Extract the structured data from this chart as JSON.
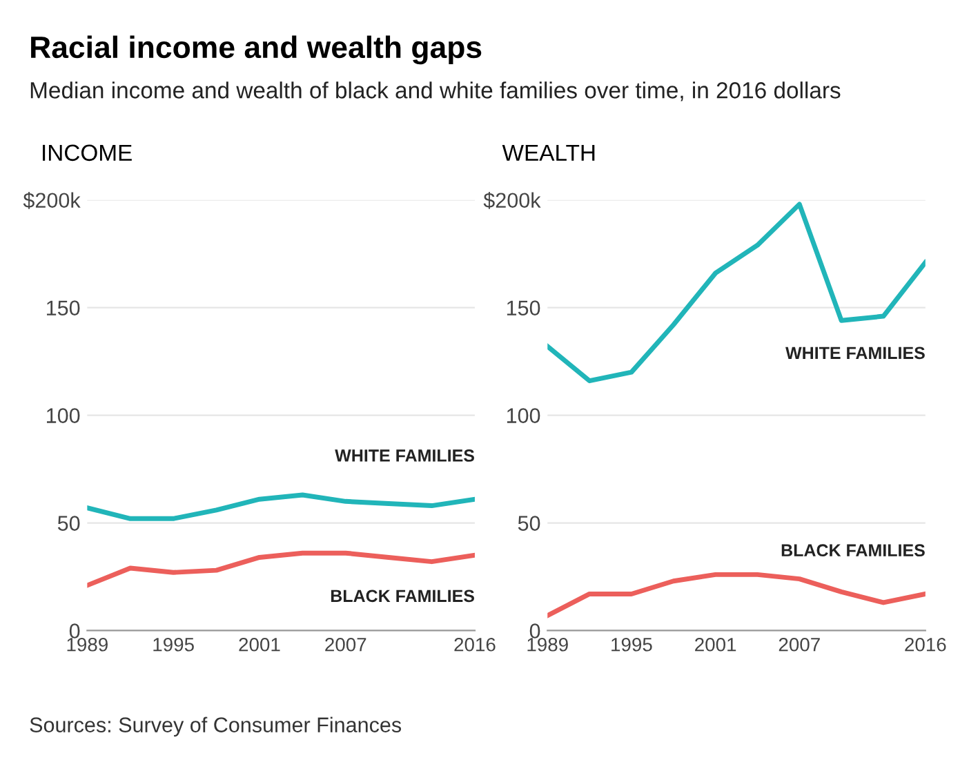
{
  "chart_data": [
    {
      "type": "line",
      "title": "Racial income and wealth gaps",
      "subtitle": "Median income and wealth of black and white families over time, in 2016 dollars",
      "ylabel": "INCOME",
      "x": [
        1989,
        1992,
        1995,
        1998,
        2001,
        2004,
        2007,
        2010,
        2013,
        2016
      ],
      "series": [
        {
          "name": "WHITE FAMILIES",
          "color": "#21b5b9",
          "values": [
            57,
            52,
            52,
            56,
            61,
            63,
            60,
            59,
            58,
            61
          ]
        },
        {
          "name": "BLACK FAMILIES",
          "color": "#ec5f5b",
          "values": [
            21,
            29,
            27,
            28,
            34,
            36,
            36,
            34,
            32,
            35
          ]
        }
      ],
      "xlim": [
        1989,
        2016
      ],
      "xticks": [
        1989,
        1995,
        2001,
        2007,
        2016
      ],
      "ylim": [
        0,
        200
      ],
      "yticks": [
        0,
        50,
        100,
        150,
        {
          "value": 200,
          "label": "$200k"
        }
      ],
      "grid": "y",
      "legend": false,
      "annotations": [
        "Sources: Survey of Consumer Finances"
      ]
    },
    {
      "type": "line",
      "ylabel": "WEALTH",
      "x": [
        1989,
        1992,
        1995,
        1998,
        2001,
        2004,
        2007,
        2010,
        2013,
        2016
      ],
      "series": [
        {
          "name": "WHITE FAMILIES",
          "color": "#21b5b9",
          "values": [
            132,
            116,
            120,
            142,
            166,
            179,
            198,
            144,
            146,
            171
          ]
        },
        {
          "name": "BLACK FAMILIES",
          "color": "#ec5f5b",
          "values": [
            7,
            17,
            17,
            23,
            26,
            26,
            24,
            18,
            13,
            17
          ]
        }
      ],
      "xlim": [
        1989,
        2016
      ],
      "xticks": [
        1989,
        1995,
        2001,
        2007,
        2016
      ],
      "ylim": [
        0,
        200
      ],
      "yticks": [
        0,
        50,
        100,
        150,
        {
          "value": 200,
          "label": "$200k"
        }
      ],
      "grid": "y",
      "legend": false
    }
  ]
}
